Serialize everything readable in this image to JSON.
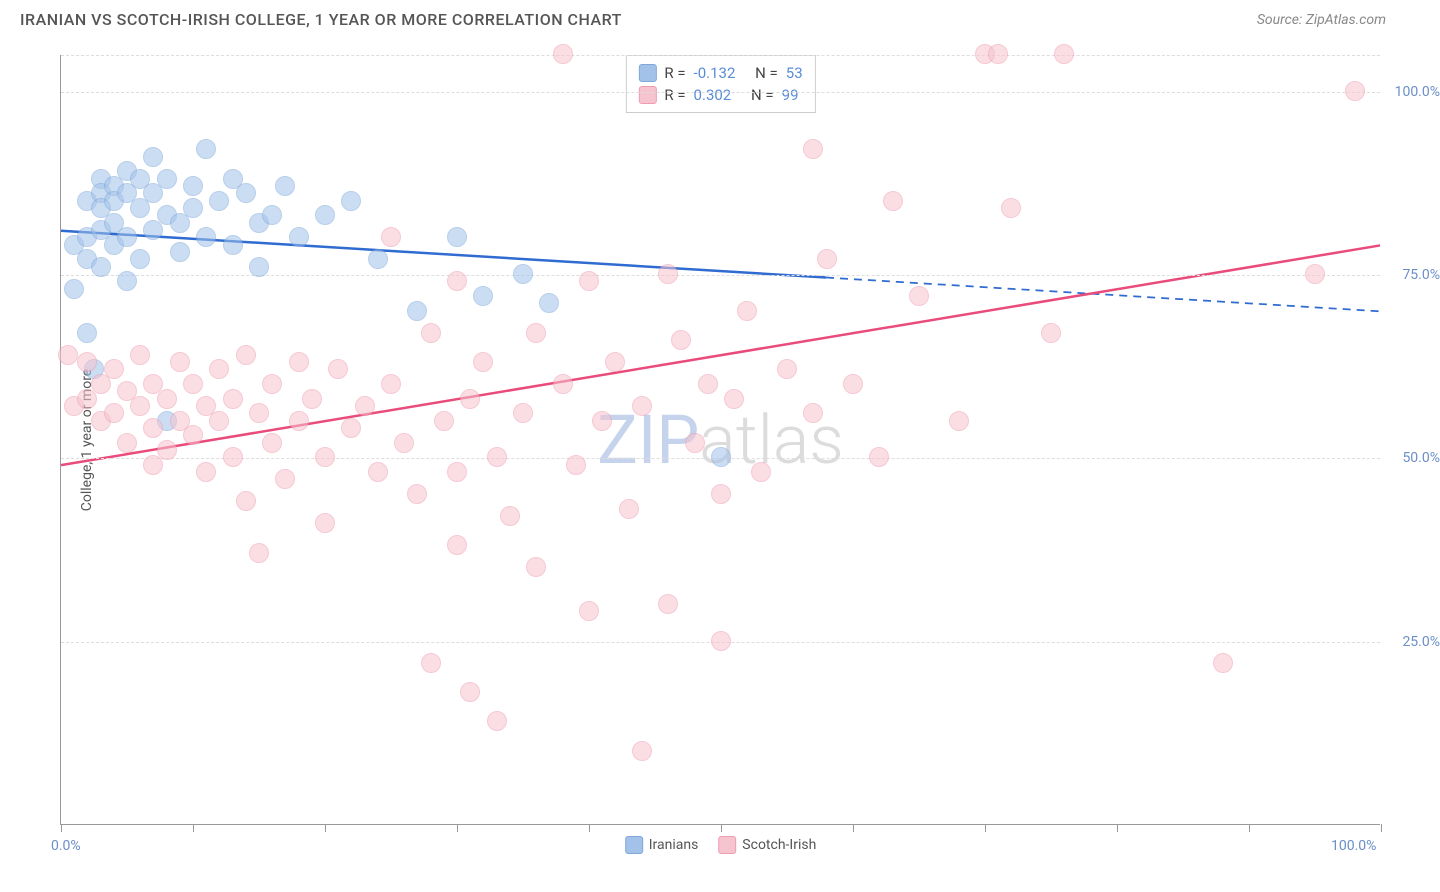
{
  "title": "IRANIAN VS SCOTCH-IRISH COLLEGE, 1 YEAR OR MORE CORRELATION CHART",
  "source": "Source: ZipAtlas.com",
  "watermark": {
    "part1": "ZIP",
    "part2": "atlas"
  },
  "y_axis_title": "College, 1 year or more",
  "chart": {
    "type": "scatter",
    "xlim": [
      0,
      100
    ],
    "ylim": [
      0,
      105
    ],
    "x_ticks": [
      0,
      10,
      20,
      30,
      40,
      50,
      60,
      70,
      80,
      90,
      100
    ],
    "x_tick_labels": {
      "0": "0.0%",
      "100": "100.0%"
    },
    "y_gridlines": [
      25,
      50,
      75,
      100,
      105
    ],
    "y_tick_labels": {
      "25": "25.0%",
      "50": "50.0%",
      "75": "75.0%",
      "100": "100.0%"
    },
    "background_color": "#ffffff",
    "grid_color": "#dddddd",
    "axis_color": "#999999",
    "label_color": "#6b8fc9",
    "series": [
      {
        "name": "Iranians",
        "fill_color": "#a2c2ea",
        "stroke_color": "#7fa8d9",
        "fill_opacity": 0.55,
        "marker_radius": 10,
        "trend": {
          "color": "#2f6bd0",
          "width": 2.5,
          "x_solid_end": 58,
          "y_start": 81,
          "y_end": 70
        },
        "stats": {
          "R": "-0.132",
          "N": "53"
        },
        "points": [
          [
            1,
            79
          ],
          [
            1,
            73
          ],
          [
            2,
            85
          ],
          [
            2,
            80
          ],
          [
            2,
            77
          ],
          [
            2,
            67
          ],
          [
            2.5,
            62
          ],
          [
            3,
            88
          ],
          [
            3,
            86
          ],
          [
            3,
            84
          ],
          [
            3,
            81
          ],
          [
            3,
            76
          ],
          [
            4,
            87
          ],
          [
            4,
            85
          ],
          [
            4,
            82
          ],
          [
            4,
            79
          ],
          [
            5,
            89
          ],
          [
            5,
            86
          ],
          [
            5,
            80
          ],
          [
            5,
            74
          ],
          [
            6,
            88
          ],
          [
            6,
            84
          ],
          [
            6,
            77
          ],
          [
            7,
            91
          ],
          [
            7,
            86
          ],
          [
            7,
            81
          ],
          [
            8,
            88
          ],
          [
            8,
            83
          ],
          [
            8,
            55
          ],
          [
            9,
            82
          ],
          [
            9,
            78
          ],
          [
            10,
            87
          ],
          [
            10,
            84
          ],
          [
            11,
            92
          ],
          [
            11,
            80
          ],
          [
            12,
            85
          ],
          [
            13,
            88
          ],
          [
            13,
            79
          ],
          [
            14,
            86
          ],
          [
            15,
            82
          ],
          [
            15,
            76
          ],
          [
            16,
            83
          ],
          [
            17,
            87
          ],
          [
            18,
            80
          ],
          [
            20,
            83
          ],
          [
            22,
            85
          ],
          [
            24,
            77
          ],
          [
            27,
            70
          ],
          [
            30,
            80
          ],
          [
            32,
            72
          ],
          [
            35,
            75
          ],
          [
            37,
            71
          ],
          [
            50,
            50
          ]
        ]
      },
      {
        "name": "Scotch-Irish",
        "fill_color": "#f6c4cf",
        "stroke_color": "#ef9db1",
        "fill_opacity": 0.55,
        "marker_radius": 10,
        "trend": {
          "color": "#e94b7a",
          "width": 2.5,
          "x_solid_end": 100,
          "y_start": 49,
          "y_end": 79
        },
        "stats": {
          "R": "0.302",
          "N": "99"
        },
        "points": [
          [
            0.5,
            64
          ],
          [
            1,
            57
          ],
          [
            2,
            63
          ],
          [
            2,
            58
          ],
          [
            3,
            60
          ],
          [
            3,
            55
          ],
          [
            4,
            62
          ],
          [
            4,
            56
          ],
          [
            5,
            59
          ],
          [
            5,
            52
          ],
          [
            6,
            64
          ],
          [
            6,
            57
          ],
          [
            7,
            60
          ],
          [
            7,
            54
          ],
          [
            7,
            49
          ],
          [
            8,
            58
          ],
          [
            8,
            51
          ],
          [
            9,
            55
          ],
          [
            9,
            63
          ],
          [
            10,
            60
          ],
          [
            10,
            53
          ],
          [
            11,
            57
          ],
          [
            11,
            48
          ],
          [
            12,
            62
          ],
          [
            12,
            55
          ],
          [
            13,
            58
          ],
          [
            13,
            50
          ],
          [
            14,
            44
          ],
          [
            14,
            64
          ],
          [
            15,
            56
          ],
          [
            15,
            37
          ],
          [
            16,
            60
          ],
          [
            16,
            52
          ],
          [
            17,
            47
          ],
          [
            18,
            63
          ],
          [
            18,
            55
          ],
          [
            19,
            58
          ],
          [
            20,
            50
          ],
          [
            20,
            41
          ],
          [
            21,
            62
          ],
          [
            22,
            54
          ],
          [
            23,
            57
          ],
          [
            24,
            48
          ],
          [
            25,
            80
          ],
          [
            25,
            60
          ],
          [
            26,
            52
          ],
          [
            27,
            45
          ],
          [
            28,
            67
          ],
          [
            28,
            22
          ],
          [
            29,
            55
          ],
          [
            30,
            74
          ],
          [
            30,
            48
          ],
          [
            30,
            38
          ],
          [
            31,
            58
          ],
          [
            31,
            18
          ],
          [
            32,
            63
          ],
          [
            33,
            50
          ],
          [
            33,
            14
          ],
          [
            34,
            42
          ],
          [
            35,
            56
          ],
          [
            36,
            67
          ],
          [
            36,
            35
          ],
          [
            38,
            60
          ],
          [
            38,
            105
          ],
          [
            39,
            49
          ],
          [
            40,
            74
          ],
          [
            40,
            29
          ],
          [
            41,
            55
          ],
          [
            42,
            63
          ],
          [
            43,
            43
          ],
          [
            44,
            10
          ],
          [
            44,
            57
          ],
          [
            46,
            75
          ],
          [
            46,
            30
          ],
          [
            47,
            66
          ],
          [
            48,
            52
          ],
          [
            49,
            60
          ],
          [
            50,
            45
          ],
          [
            50,
            25
          ],
          [
            51,
            58
          ],
          [
            52,
            70
          ],
          [
            53,
            48
          ],
          [
            55,
            62
          ],
          [
            57,
            92
          ],
          [
            57,
            56
          ],
          [
            58,
            77
          ],
          [
            60,
            60
          ],
          [
            62,
            50
          ],
          [
            63,
            85
          ],
          [
            65,
            72
          ],
          [
            68,
            55
          ],
          [
            70,
            105
          ],
          [
            71,
            105
          ],
          [
            72,
            84
          ],
          [
            75,
            67
          ],
          [
            76,
            105
          ],
          [
            88,
            22
          ],
          [
            95,
            75
          ],
          [
            98,
            100
          ]
        ]
      }
    ]
  },
  "stats_labels": {
    "R": "R =",
    "N": "N ="
  },
  "legend_labels": {
    "iranians": "Iranians",
    "scotch_irish": "Scotch-Irish"
  }
}
